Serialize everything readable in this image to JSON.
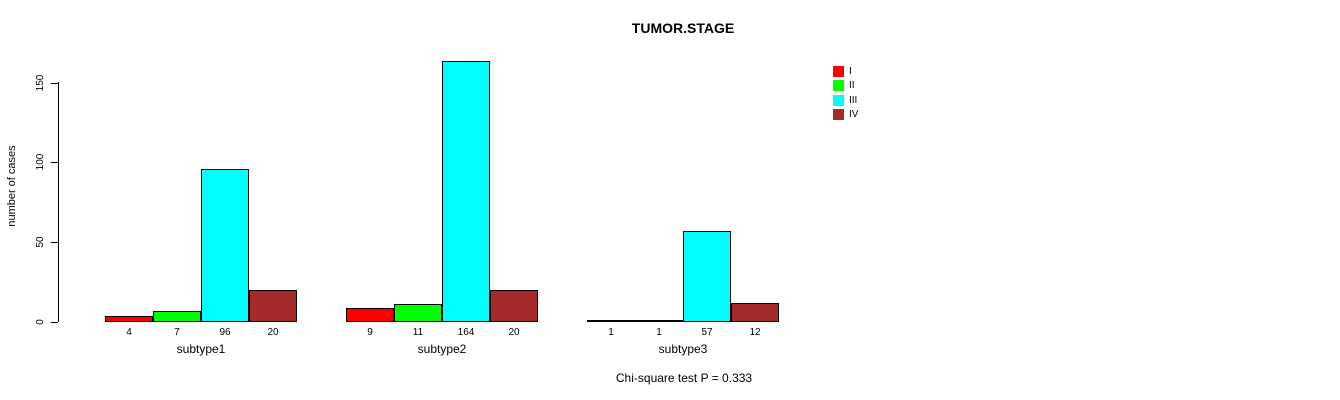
{
  "title": "TUMOR.STAGE",
  "y_axis": {
    "label": "number of cases",
    "ticks": [
      0,
      50,
      100,
      150
    ]
  },
  "legend": {
    "items": [
      {
        "label": "I",
        "color": "#FF0000"
      },
      {
        "label": "II",
        "color": "#00FF00"
      },
      {
        "label": "III",
        "color": "#00FFFF"
      },
      {
        "label": "IV",
        "color": "#A52A2A"
      }
    ]
  },
  "footer": {
    "text": "Chi-square test P = 0.333"
  },
  "chart_data": {
    "type": "bar",
    "title": "TUMOR.STAGE",
    "xlabel": "",
    "ylabel": "number of cases",
    "ylim": [
      0,
      164
    ],
    "yticks": [
      0,
      50,
      100,
      150
    ],
    "grid": false,
    "legend_position": "right",
    "bar_value_labels": true,
    "categories": [
      "subtype1",
      "subtype2",
      "subtype3"
    ],
    "series": [
      {
        "name": "I",
        "color": "#FF0000",
        "values": [
          4,
          9,
          1
        ]
      },
      {
        "name": "II",
        "color": "#00FF00",
        "values": [
          7,
          11,
          1
        ]
      },
      {
        "name": "III",
        "color": "#00FFFF",
        "values": [
          96,
          164,
          57
        ]
      },
      {
        "name": "IV",
        "color": "#A52A2A",
        "values": [
          20,
          20,
          12
        ]
      }
    ],
    "annotation": "Chi-square test P = 0.333"
  }
}
